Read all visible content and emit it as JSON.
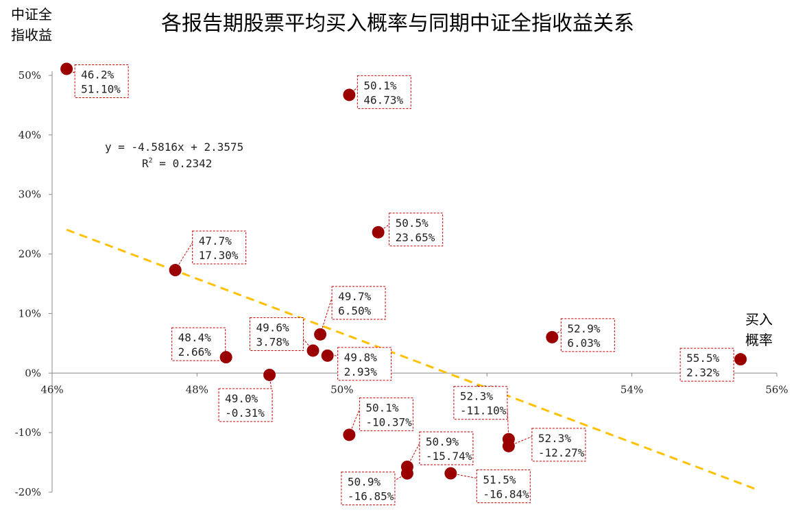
{
  "chart_data": {
    "type": "scatter",
    "title": "各报告期股票平均买入概率与同期中证全指收益关系",
    "xlabel": [
      "买入",
      "概率"
    ],
    "ylabel": [
      "中证全",
      "指收益"
    ],
    "xlim": [
      0.46,
      0.56
    ],
    "ylim": [
      -0.2,
      0.5
    ],
    "x_ticks": [
      0.46,
      0.48,
      0.5,
      0.52,
      0.54,
      0.56
    ],
    "x_tick_labels": [
      "46%",
      "48%",
      "50%",
      "52%",
      "54%",
      "56%"
    ],
    "y_ticks": [
      0.5,
      0.4,
      0.3,
      0.2,
      0.1,
      0.0,
      -0.1,
      -0.2
    ],
    "y_tick_labels": [
      "50%",
      "40%",
      "30%",
      "20%",
      "10%",
      "0%",
      "-10%",
      "-20%"
    ],
    "grid": false,
    "marker_color": "#9b0000",
    "trend_color": "#ffc000",
    "label_border_color": "#c00000",
    "trendline": {
      "equation": "y = -4.5816x + 2.3575",
      "r2_prefix": "R",
      "r2_sup": "2",
      "r2_suffix": " = 0.2342",
      "slope": -4.5816,
      "intercept": 2.3575,
      "x_range": [
        0.462,
        0.557
      ]
    },
    "points": [
      {
        "x": 0.462,
        "y": 0.511,
        "label_x": "46.2%",
        "label_y": "51.10%"
      },
      {
        "x": 0.501,
        "y": 0.4673,
        "label_x": "50.1%",
        "label_y": "46.73%"
      },
      {
        "x": 0.505,
        "y": 0.2365,
        "label_x": "50.5%",
        "label_y": "23.65%"
      },
      {
        "x": 0.477,
        "y": 0.173,
        "label_x": "47.7%",
        "label_y": "17.30%"
      },
      {
        "x": 0.497,
        "y": 0.065,
        "label_x": "49.7%",
        "label_y": "6.50%"
      },
      {
        "x": 0.529,
        "y": 0.0603,
        "label_x": "52.9%",
        "label_y": "6.03%"
      },
      {
        "x": 0.496,
        "y": 0.0378,
        "label_x": "49.6%",
        "label_y": "3.78%"
      },
      {
        "x": 0.498,
        "y": 0.0293,
        "label_x": "49.8%",
        "label_y": "2.93%"
      },
      {
        "x": 0.484,
        "y": 0.0266,
        "label_x": "48.4%",
        "label_y": "2.66%"
      },
      {
        "x": 0.555,
        "y": 0.0232,
        "label_x": "55.5%",
        "label_y": "2.32%"
      },
      {
        "x": 0.49,
        "y": -0.0031,
        "label_x": "49.0%",
        "label_y": "-0.31%"
      },
      {
        "x": 0.501,
        "y": -0.1037,
        "label_x": "50.1%",
        "label_y": "-10.37%"
      },
      {
        "x": 0.523,
        "y": -0.111,
        "label_x": "52.3%",
        "label_y": "-11.10%"
      },
      {
        "x": 0.523,
        "y": -0.1227,
        "label_x": "52.3%",
        "label_y": "-12.27%"
      },
      {
        "x": 0.509,
        "y": -0.1574,
        "label_x": "50.9%",
        "label_y": "-15.74%"
      },
      {
        "x": 0.509,
        "y": -0.1685,
        "label_x": "50.9%",
        "label_y": "-16.85%"
      },
      {
        "x": 0.515,
        "y": -0.1684,
        "label_x": "51.5%",
        "label_y": "-16.84%"
      }
    ]
  }
}
